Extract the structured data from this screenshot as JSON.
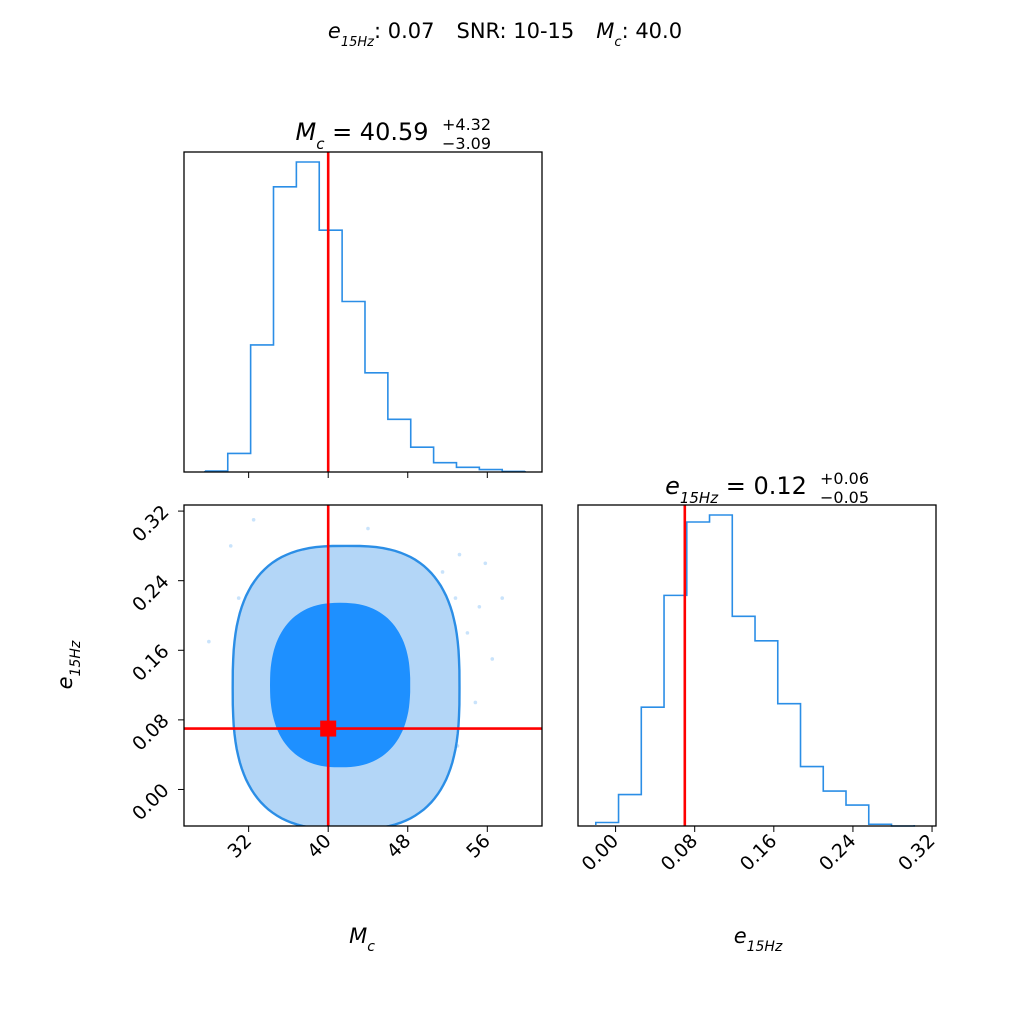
{
  "header": {
    "e_sym": "e",
    "e_sub": "15Hz",
    "e_val": ": 0.07",
    "snr": "SNR: 10-15",
    "mc_sym": "M",
    "mc_sub": "c",
    "mc_val": ": 40.0"
  },
  "colors": {
    "hist": "#2b8ee6",
    "contour_inner": "#1e90ff",
    "contour_outer": "#b3d6f7",
    "contour_line": "#2b8ee6",
    "truth": "#ff0000"
  },
  "chart_data": [
    {
      "type": "histogram",
      "parameter": "M_c",
      "title": {
        "sym": "M",
        "sub": "c",
        "eq": " = 40.59",
        "up": "+4.32",
        "down": "−3.09"
      },
      "xlim": [
        25.5,
        61.5
      ],
      "truth": 40.0,
      "bin_edges": [
        27.6,
        29.9,
        32.2,
        34.5,
        36.8,
        39.1,
        41.4,
        43.7,
        46.0,
        48.3,
        50.6,
        52.9,
        55.2,
        57.5,
        59.8
      ],
      "heights": [
        0.003,
        0.06,
        0.41,
        0.92,
        1.0,
        0.78,
        0.55,
        0.32,
        0.17,
        0.08,
        0.03,
        0.015,
        0.008,
        0.002
      ]
    },
    {
      "type": "histogram",
      "parameter": "e_15Hz",
      "title": {
        "sym": "e",
        "sub": "15Hz",
        "eq": " = 0.12",
        "up": "+0.06",
        "down": "−0.05"
      },
      "xlim": [
        -0.038,
        0.324
      ],
      "truth": 0.07,
      "xticks": [
        "0.00",
        "0.08",
        "0.16",
        "0.24",
        "0.32"
      ],
      "xtick_values": [
        0.0,
        0.08,
        0.16,
        0.24,
        0.32
      ],
      "xlabel": {
        "sym": "e",
        "sub": "15Hz"
      },
      "bin_edges": [
        -0.02,
        0.003,
        0.026,
        0.049,
        0.072,
        0.095,
        0.118,
        0.141,
        0.164,
        0.187,
        0.21,
        0.233,
        0.256,
        0.279,
        0.302
      ],
      "heights": [
        0.01,
        0.09,
        0.34,
        0.66,
        0.87,
        0.89,
        0.6,
        0.53,
        0.35,
        0.17,
        0.1,
        0.06,
        0.005,
        0.0
      ]
    },
    {
      "type": "contour",
      "x_parameter": "M_c",
      "y_parameter": "e_15Hz",
      "xlim": [
        25.5,
        61.5
      ],
      "ylim": [
        -0.042,
        0.327
      ],
      "xticks": [
        "32",
        "40",
        "48",
        "56"
      ],
      "xtick_values": [
        32,
        40,
        48,
        56
      ],
      "yticks": [
        "0.00",
        "0.08",
        "0.16",
        "0.24",
        "0.32"
      ],
      "ytick_values": [
        0.0,
        0.08,
        0.16,
        0.24,
        0.32
      ],
      "xlabel": {
        "sym": "M",
        "sub": "c"
      },
      "ylabel": {
        "sym": "e",
        "sub": "15Hz"
      },
      "truth": [
        40.0,
        0.07
      ],
      "levels": [
        {
          "name": "outer",
          "center": [
            41.8,
            0.117
          ],
          "rx": 11.4,
          "ry": 0.163,
          "power": 2.8
        },
        {
          "name": "inner",
          "center": [
            41.2,
            0.12
          ],
          "rx": 7.0,
          "ry": 0.094,
          "power": 2.4
        }
      ],
      "scatter": [
        [
          28.0,
          0.17
        ],
        [
          30.2,
          0.28
        ],
        [
          31.0,
          0.22
        ],
        [
          32.5,
          0.31
        ],
        [
          51.5,
          0.25
        ],
        [
          52.8,
          0.22
        ],
        [
          54.0,
          0.18
        ],
        [
          55.2,
          0.21
        ],
        [
          56.5,
          0.15
        ],
        [
          57.5,
          0.22
        ],
        [
          53.2,
          0.27
        ],
        [
          54.8,
          0.1
        ],
        [
          53.0,
          0.05
        ],
        [
          44.0,
          0.3
        ],
        [
          52.2,
          0.2
        ],
        [
          55.8,
          0.26
        ]
      ]
    }
  ]
}
